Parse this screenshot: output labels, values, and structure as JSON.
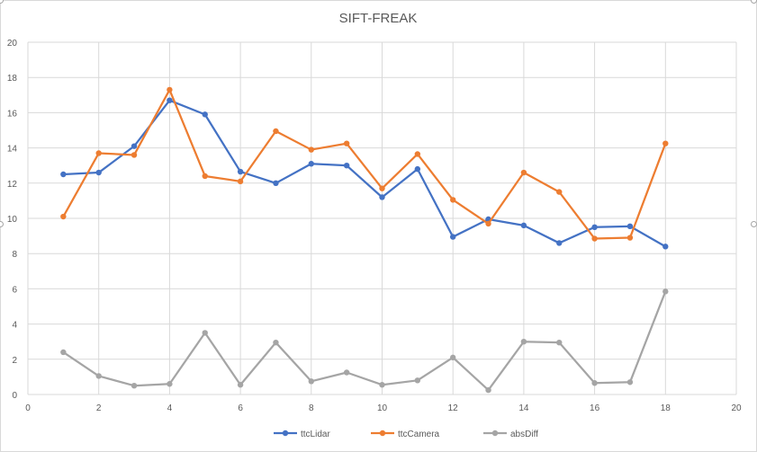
{
  "chart_data": {
    "type": "line",
    "title": "SIFT-FREAK",
    "xlim": [
      0,
      20
    ],
    "ylim": [
      0,
      20
    ],
    "x_ticks": [
      0,
      2,
      4,
      6,
      8,
      10,
      12,
      14,
      16,
      18,
      20
    ],
    "y_ticks": [
      0,
      2,
      4,
      6,
      8,
      10,
      12,
      14,
      16,
      18,
      20
    ],
    "grid": true,
    "legend_position": "bottom",
    "x": [
      1,
      2,
      3,
      4,
      5,
      6,
      7,
      8,
      9,
      10,
      11,
      12,
      13,
      14,
      15,
      16,
      17,
      18
    ],
    "series": [
      {
        "name": "ttcLidar",
        "color": "#4472c4",
        "values": [
          12.5,
          12.6,
          14.1,
          16.7,
          15.9,
          12.65,
          12.0,
          13.1,
          13.0,
          11.2,
          12.8,
          8.95,
          9.95,
          9.6,
          8.6,
          9.5,
          9.55,
          8.4
        ]
      },
      {
        "name": "ttcCamera",
        "color": "#ed7d31",
        "values": [
          10.1,
          13.7,
          13.6,
          17.3,
          12.4,
          12.1,
          14.95,
          13.9,
          14.25,
          11.7,
          13.65,
          11.05,
          9.7,
          12.6,
          11.5,
          8.85,
          8.9,
          14.25
        ]
      },
      {
        "name": "absDiff",
        "color": "#a5a5a5",
        "values": [
          2.4,
          1.05,
          0.5,
          0.6,
          3.5,
          0.55,
          2.95,
          0.75,
          1.25,
          0.55,
          0.8,
          2.1,
          0.25,
          3.0,
          2.95,
          0.65,
          0.7,
          5.85
        ]
      }
    ]
  }
}
